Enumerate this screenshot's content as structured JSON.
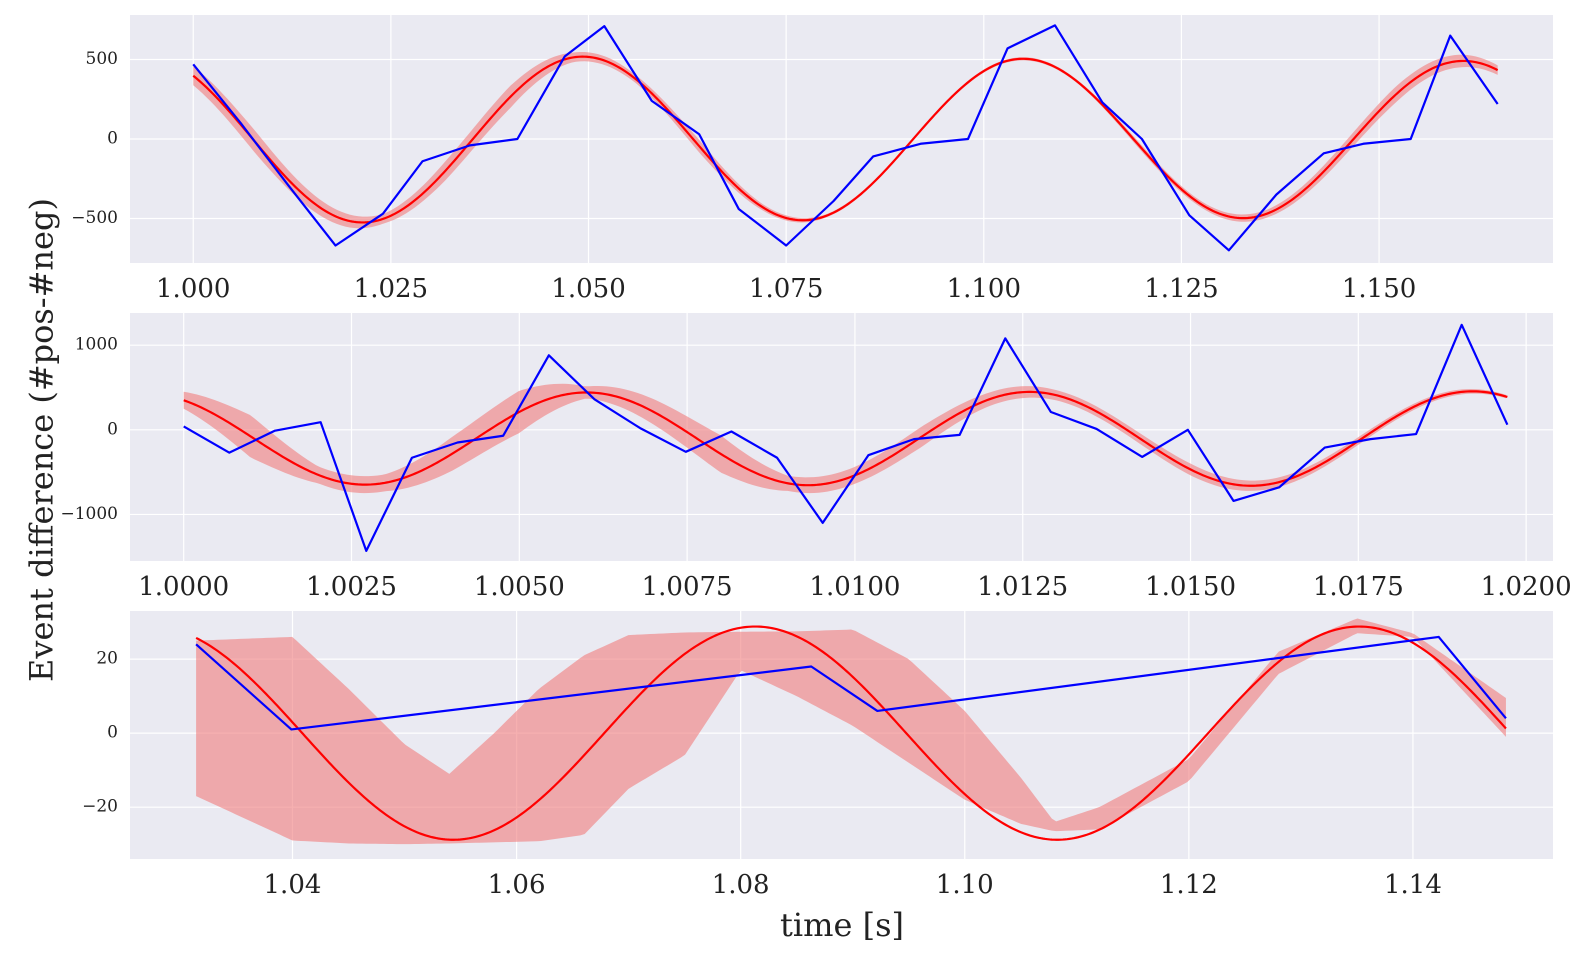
{
  "figure": {
    "ylabel": "Event difference (#pos-#neg)",
    "xlabel": "time [s]"
  },
  "colors": {
    "data_line": "#0000ff",
    "fit_line": "#ff0000",
    "band_fill": "#f08080",
    "axes_background": "#eaeaf2",
    "grid": "#ffffff"
  },
  "chart_data": [
    {
      "type": "line",
      "xlim": [
        0.992,
        1.172
      ],
      "ylim": [
        -780,
        780
      ],
      "xticks": [
        1.0,
        1.025,
        1.05,
        1.075,
        1.1,
        1.125,
        1.15
      ],
      "xtick_labels": [
        "1.000",
        "1.025",
        "1.050",
        "1.075",
        "1.100",
        "1.125",
        "1.150"
      ],
      "yticks": [
        -500,
        0,
        500
      ],
      "ytick_labels": [
        "−500",
        "0",
        "500"
      ],
      "grid": true,
      "series": [
        {
          "role": "data",
          "x": [
            1.0,
            1.006,
            1.012,
            1.018,
            1.024,
            1.029,
            1.035,
            1.041,
            1.047,
            1.052,
            1.058,
            1.064,
            1.069,
            1.075,
            1.081,
            1.086,
            1.092,
            1.098,
            1.103,
            1.109,
            1.115,
            1.12,
            1.126,
            1.131,
            1.137,
            1.143,
            1.148,
            1.154,
            1.159,
            1.165
          ],
          "y": [
            470,
            100,
            -290,
            -670,
            -470,
            -140,
            -40,
            0,
            520,
            710,
            240,
            30,
            -440,
            -670,
            -390,
            -110,
            -30,
            0,
            570,
            715,
            230,
            0,
            -480,
            -700,
            -350,
            -90,
            -30,
            0,
            650,
            220
          ]
        },
        {
          "role": "fit",
          "func": "sine",
          "x_range": [
            1.0,
            1.165
          ],
          "amp": [
            530,
            490
          ],
          "center": 0,
          "period": 0.0557,
          "peak_x": 1.0493
        }
      ],
      "band": {
        "x": [
          1.0,
          1.008,
          1.016,
          1.024,
          1.032,
          1.04,
          1.048,
          1.056,
          1.064,
          1.072,
          1.08,
          1.088,
          1.096,
          1.104,
          1.112,
          1.12,
          1.128,
          1.136,
          1.144,
          1.152,
          1.16,
          1.165
        ],
        "width": [
          60,
          70,
          50,
          30,
          60,
          70,
          30,
          25,
          40,
          20,
          10,
          10,
          10,
          10,
          10,
          20,
          20,
          25,
          40,
          50,
          40,
          30
        ]
      }
    },
    {
      "type": "line",
      "xlim": [
        0.9992,
        1.0204
      ],
      "ylim": [
        -1550,
        1380
      ],
      "xticks": [
        1.0,
        1.0025,
        1.005,
        1.0075,
        1.01,
        1.0125,
        1.015,
        1.0175,
        1.02
      ],
      "xtick_labels": [
        "1.0000",
        "1.0025",
        "1.0050",
        "1.0075",
        "1.0100",
        "1.0125",
        "1.0150",
        "1.0175",
        "1.0200"
      ],
      "yticks": [
        -1000,
        0,
        1000
      ],
      "ytick_labels": [
        "−1000",
        "0",
        "1000"
      ],
      "grid": true,
      "series": [
        {
          "role": "data",
          "x": [
            1.0,
            1.00068,
            1.00136,
            1.00204,
            1.00272,
            1.0034,
            1.00408,
            1.00476,
            1.00544,
            1.00612,
            1.0068,
            1.00748,
            1.00816,
            1.00884,
            1.00952,
            1.0102,
            1.01088,
            1.01156,
            1.01224,
            1.01292,
            1.0136,
            1.01428,
            1.01496,
            1.01564,
            1.01632,
            1.017,
            1.01768,
            1.01836,
            1.01904,
            1.01972
          ],
          "y": [
            40,
            -270,
            -10,
            90,
            -1430,
            -330,
            -150,
            -70,
            880,
            360,
            20,
            -260,
            -20,
            -330,
            -1100,
            -300,
            -110,
            -60,
            1080,
            210,
            10,
            -320,
            0,
            -840,
            -680,
            -210,
            -110,
            -50,
            1240,
            60
          ]
        },
        {
          "role": "fit",
          "func": "sine",
          "x_range": [
            1.0,
            1.01972
          ],
          "amp": [
            540,
            560
          ],
          "center": -105,
          "period": 0.0066,
          "peak_x": 1.006
        }
      ],
      "band": {
        "x": [
          1.0,
          1.001,
          1.002,
          1.003,
          1.004,
          1.005,
          1.006,
          1.007,
          1.008,
          1.009,
          1.01,
          1.011,
          1.012,
          1.013,
          1.014,
          1.015,
          1.016,
          1.017,
          1.018,
          1.019,
          1.0197
        ],
        "width": [
          100,
          250,
          100,
          100,
          200,
          250,
          70,
          150,
          220,
          90,
          100,
          120,
          80,
          60,
          60,
          70,
          60,
          50,
          40,
          30,
          20
        ]
      }
    },
    {
      "type": "line",
      "xlim": [
        1.0255,
        1.1525
      ],
      "ylim": [
        -34,
        33
      ],
      "xticks": [
        1.04,
        1.06,
        1.08,
        1.1,
        1.12,
        1.14
      ],
      "xtick_labels": [
        "1.04",
        "1.06",
        "1.08",
        "1.10",
        "1.12",
        "1.14"
      ],
      "yticks": [
        -20,
        0,
        20
      ],
      "ytick_labels": [
        "−20",
        "0",
        "20"
      ],
      "grid": true,
      "series": [
        {
          "role": "data",
          "x": [
            1.0314,
            1.0399,
            1.0863,
            1.0922,
            1.1423,
            1.1483
          ],
          "y": [
            24,
            1,
            18,
            6,
            26,
            4
          ]
        },
        {
          "role": "fit",
          "func": "sine",
          "x_range": [
            1.0314,
            1.1483
          ],
          "amp": [
            28.8,
            28.8
          ],
          "center": 0,
          "period": 0.0539,
          "peak_x": 1.0813
        }
      ],
      "band": {
        "x": [
          1.0314,
          1.04,
          1.045,
          1.05,
          1.054,
          1.058,
          1.062,
          1.066,
          1.07,
          1.075,
          1.08,
          1.085,
          1.09,
          1.095,
          1.1,
          1.105,
          1.108,
          1.112,
          1.12,
          1.128,
          1.135,
          1.14,
          1.1483
        ],
        "lower": [
          -17,
          -29,
          -29.8,
          -30,
          -29.8,
          -29.5,
          -29.2,
          -27.5,
          -15,
          -6,
          17,
          10,
          2,
          -8,
          -18,
          -24.5,
          -26.5,
          -26,
          -13,
          16,
          27,
          26,
          -1
        ],
        "upper": [
          25,
          26,
          12,
          -3,
          -11,
          0,
          12,
          21,
          26.5,
          27.2,
          27.4,
          27.5,
          28,
          20,
          6,
          -12,
          -24,
          -20,
          -7,
          22,
          31,
          27,
          9.5
        ]
      }
    }
  ]
}
